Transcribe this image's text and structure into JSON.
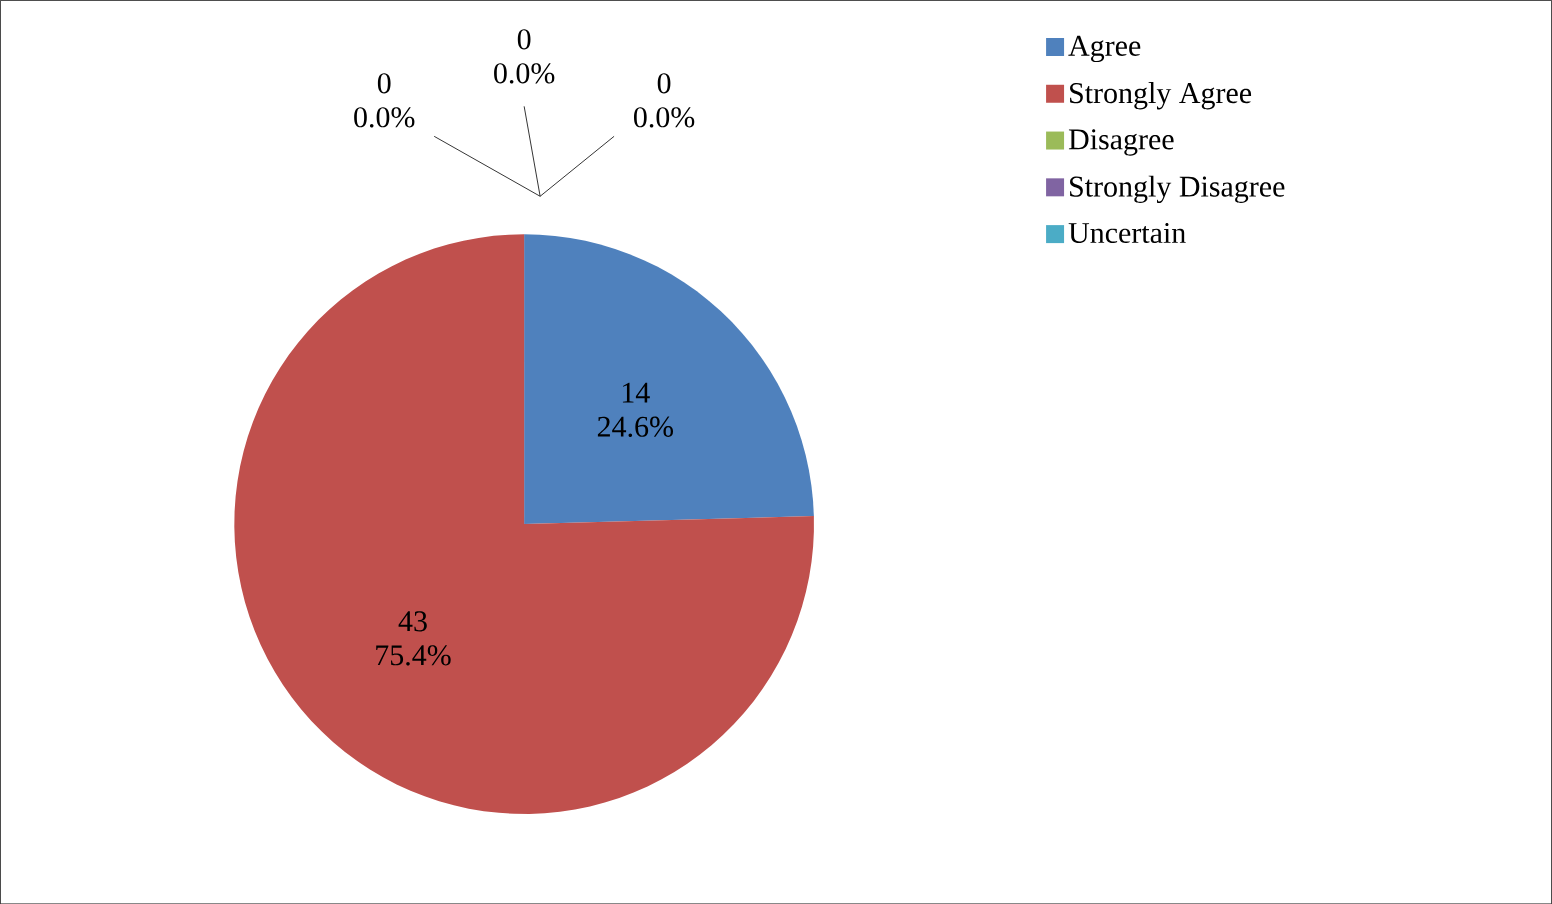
{
  "chart_data": {
    "type": "pie",
    "categories": [
      "Agree",
      "Strongly Agree",
      "Disagree",
      "Strongly Disagree",
      "Uncertain"
    ],
    "values": [
      14,
      43,
      0,
      0,
      0
    ],
    "colors": [
      "#4f81bd",
      "#c0504d",
      "#9bbb59",
      "#8064a2",
      "#4bacc6"
    ],
    "value_labels": [
      "14 24.6%",
      "43 75.4%",
      "0 0.0%",
      "0 0.0%",
      "0 0.0%"
    ],
    "legend": "right"
  }
}
